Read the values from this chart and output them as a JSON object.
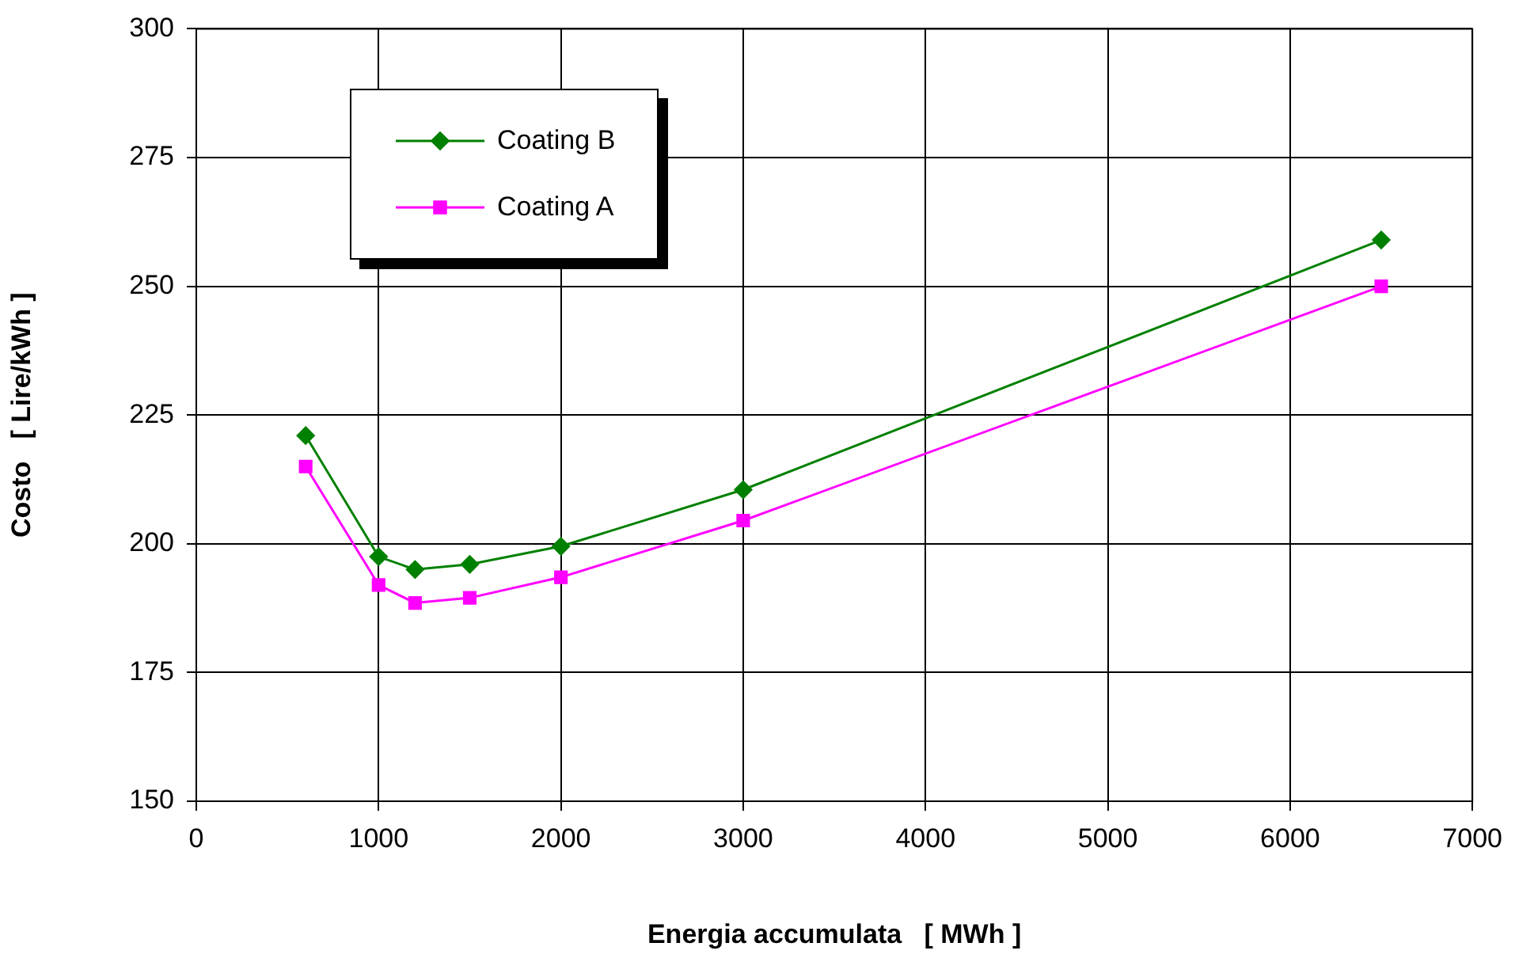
{
  "chart_data": {
    "type": "line",
    "xlabel": "Energia accumulata   [ MWh ]",
    "ylabel": "Costo   [ Lire/kWh ]",
    "x": [
      600,
      1000,
      1200,
      1500,
      2000,
      3000,
      6500
    ],
    "series": [
      {
        "name": "Coating B",
        "color": "#008000",
        "marker": "diamond",
        "values": [
          221,
          197.5,
          195,
          196,
          199.5,
          210.5,
          259
        ]
      },
      {
        "name": "Coating A",
        "color": "#ff00ff",
        "marker": "square",
        "values": [
          215,
          192,
          188.5,
          189.5,
          193.5,
          204.5,
          250
        ]
      }
    ],
    "xlim": [
      0,
      7000
    ],
    "xticks": [
      0,
      1000,
      2000,
      3000,
      4000,
      5000,
      6000,
      7000
    ],
    "ylim": [
      150,
      300
    ],
    "yticks": [
      150,
      175,
      200,
      225,
      250,
      275,
      300
    ],
    "grid": true,
    "legend": "top left"
  }
}
